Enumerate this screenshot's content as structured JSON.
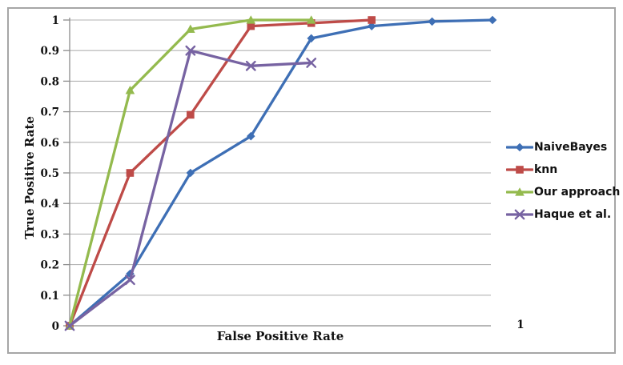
{
  "chart_data": {
    "type": "line",
    "title": "",
    "xlabel": "False Positive Rate",
    "ylabel": "True Positive Rate",
    "x_axis_visible_label": "1",
    "ylim": [
      0,
      1
    ],
    "ytick_labels": [
      "0",
      "0.1",
      "0.2",
      "0.3",
      "0.4",
      "0.5",
      "0.6",
      "0.7",
      "0.8",
      "0.9",
      "1"
    ],
    "grid": "horizontal-gridlines-on",
    "legend_position": "right-outside",
    "x_layout_note": "data points evenly spaced along x; only tick label shown is 1 at right end",
    "series": [
      {
        "name": "NaiveBayes",
        "color": "#3E6FB5",
        "marker": "diamond",
        "x": [
          0,
          1,
          2,
          3,
          4,
          5,
          6,
          7
        ],
        "y": [
          0,
          0.17,
          0.5,
          0.62,
          0.94,
          0.98,
          0.995,
          1.0
        ]
      },
      {
        "name": "knn",
        "color": "#BE4B48",
        "marker": "square",
        "x": [
          0,
          1,
          2,
          3,
          4,
          5
        ],
        "y": [
          0,
          0.5,
          0.69,
          0.98,
          0.99,
          1.0
        ]
      },
      {
        "name": "Our approach",
        "color": "#94BA4E",
        "marker": "triangle",
        "x": [
          0,
          1,
          2,
          3,
          4
        ],
        "y": [
          0,
          0.77,
          0.97,
          1.0,
          1.0
        ]
      },
      {
        "name": "Haque et al.",
        "color": "#7763A2",
        "marker": "x",
        "x": [
          0,
          1,
          2,
          3,
          4
        ],
        "y": [
          0,
          0.15,
          0.9,
          0.85,
          0.86
        ]
      }
    ]
  },
  "colors": {
    "background": "#FFFFFF",
    "chart_border": "#A6A6A6",
    "gridline": "#B3B3B3",
    "axis": "#8C8C8C",
    "text": "#111111"
  }
}
